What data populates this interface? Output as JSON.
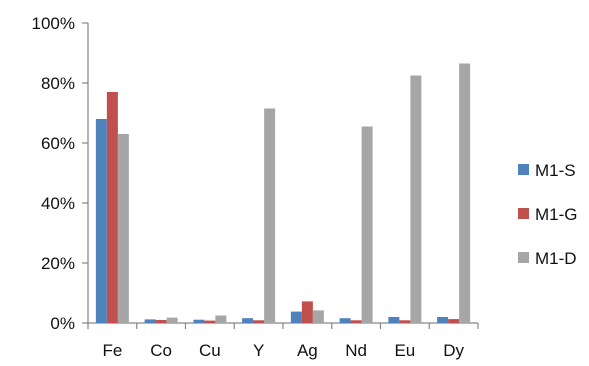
{
  "chart_data": {
    "type": "bar",
    "categories": [
      "Fe",
      "Co",
      "Cu",
      "Y",
      "Ag",
      "Nd",
      "Eu",
      "Dy"
    ],
    "series": [
      {
        "name": "M1-S",
        "values": [
          68,
          1.2,
          1.1,
          1.6,
          3.8,
          1.6,
          2.0,
          2.0
        ],
        "color": "#4F81BD"
      },
      {
        "name": "M1-G",
        "values": [
          77,
          1.0,
          0.8,
          0.9,
          7.2,
          0.9,
          0.9,
          1.3
        ],
        "color": "#C0504D"
      },
      {
        "name": "M1-D",
        "values": [
          63,
          1.8,
          2.5,
          71.5,
          4.2,
          65.5,
          82.5,
          86.5
        ],
        "color": "#A6A6A6"
      }
    ],
    "y_ticks": [
      "0%",
      "20%",
      "40%",
      "60%",
      "80%",
      "100%"
    ],
    "ylim": [
      0,
      100
    ],
    "grid": false,
    "legend_position": "right",
    "title": "",
    "xlabel": "",
    "ylabel": ""
  }
}
